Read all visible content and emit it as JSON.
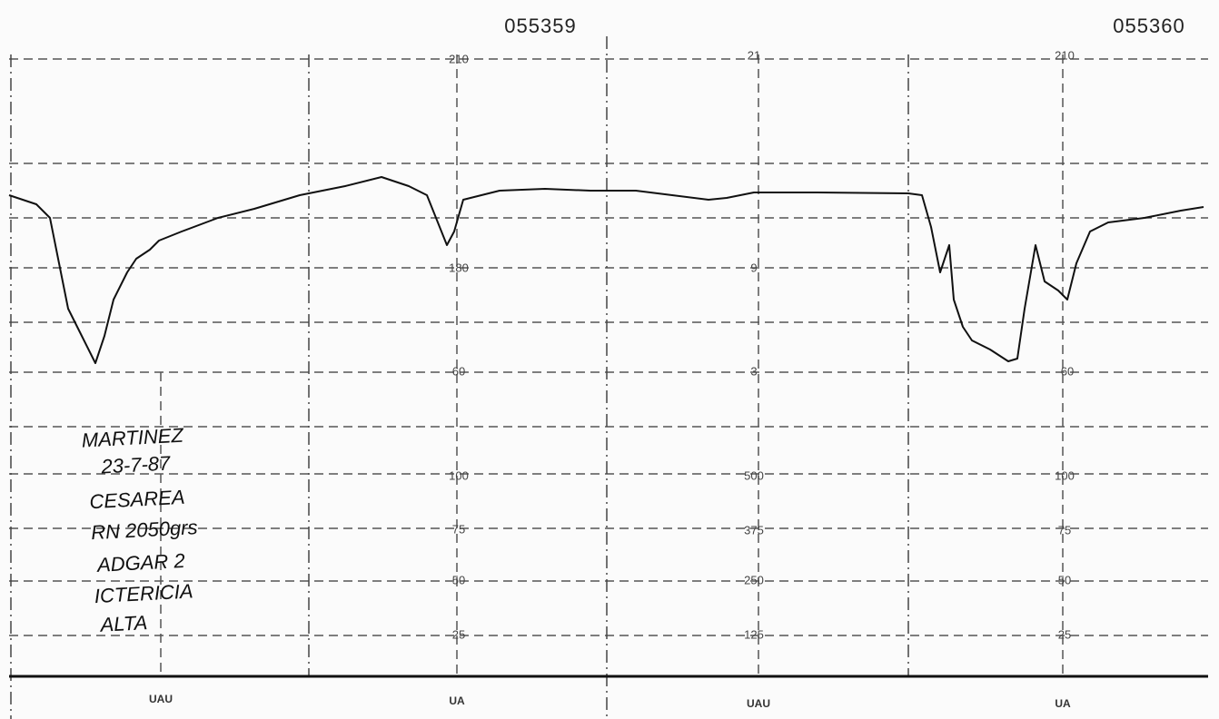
{
  "header": {
    "strip_ids": [
      "055359",
      "055360"
    ]
  },
  "fhr_scale": {
    "top": [
      "210",
      "21",
      "210"
    ],
    "middle": [
      "180",
      "9"
    ],
    "bottom": [
      "60",
      "3",
      "60"
    ]
  },
  "uterine_scale": {
    "row_100": [
      "100",
      "500",
      "100"
    ],
    "row_75": [
      "75",
      "375",
      "75"
    ],
    "row_50": [
      "50",
      "250",
      "50"
    ],
    "row_25": [
      "25",
      "125",
      "25"
    ]
  },
  "channel_labels": [
    "UAU",
    "UA",
    "UAU",
    "UA"
  ],
  "notes": [
    "MARTINEZ",
    "23-7-87",
    "CESAREA",
    "RN 2050grs",
    "ADGAR 2",
    "ICTERICIA",
    "ALTA"
  ]
}
